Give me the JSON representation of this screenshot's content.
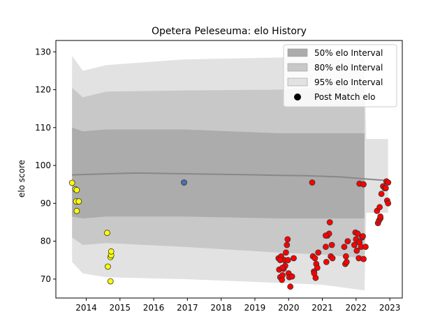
{
  "chart_data": {
    "type": "scatter",
    "title": "Opetera Peleseuma: elo History",
    "xlabel": "",
    "ylabel": "elo score",
    "xlim": [
      2013.1,
      2023.37
    ],
    "ylim": [
      65,
      133
    ],
    "x_ticks": [
      2014,
      2015,
      2016,
      2017,
      2018,
      2019,
      2020,
      2021,
      2022,
      2023
    ],
    "x_tick_labels": [
      "2014",
      "2015",
      "2016",
      "2017",
      "2018",
      "2019",
      "2020",
      "2021",
      "2022",
      "2023"
    ],
    "y_ticks": [
      70,
      80,
      90,
      100,
      110,
      120,
      130
    ],
    "y_tick_labels": [
      "70",
      "80",
      "90",
      "100",
      "110",
      "120",
      "130"
    ],
    "grid": false,
    "legend_position": "top-right",
    "legend": [
      {
        "label": "50% elo Interval",
        "kind": "band",
        "color": "#acacac"
      },
      {
        "label": "80% elo Interval",
        "kind": "band",
        "color": "#c8c8c8"
      },
      {
        "label": "95% elo Interval",
        "kind": "band",
        "color": "#e2e2e2"
      },
      {
        "label": "Post Match elo",
        "kind": "marker",
        "color": "#000000"
      }
    ],
    "mean_line": {
      "color": "#888888",
      "x": [
        2013.58,
        2014.6,
        2015.5,
        2016.9,
        2018.5,
        2019.7,
        2020.5,
        2021.5,
        2022.2,
        2022.95
      ],
      "y": [
        97.5,
        97.8,
        98.0,
        97.8,
        97.6,
        97.4,
        97.3,
        97.0,
        96.5,
        96.0
      ]
    },
    "intervals": [
      {
        "name": "95% elo Interval",
        "color": "#e2e2e2",
        "x": [
          2013.58,
          2013.9,
          2014.6,
          2016.9,
          2019.7,
          2021.0,
          2022.25,
          2022.3,
          2022.95
        ],
        "upper": [
          129,
          125,
          126.5,
          128,
          128.5,
          128.5,
          128.5,
          107,
          107
        ],
        "lower": [
          74.5,
          71.5,
          70.5,
          70.0,
          69.0,
          68.5,
          67.0,
          87.5,
          87.5
        ]
      },
      {
        "name": "80% elo Interval",
        "color": "#c8c8c8",
        "x": [
          2013.58,
          2013.9,
          2014.6,
          2016.9,
          2019.7,
          2021.0,
          2022.25
        ],
        "upper": [
          120.5,
          118,
          119.5,
          119.8,
          120,
          120.5,
          121
        ],
        "lower": [
          81,
          79,
          79.5,
          78.5,
          77,
          76.5,
          75.5
        ]
      },
      {
        "name": "50% elo Interval",
        "color": "#acacac",
        "x": [
          2013.58,
          2013.9,
          2014.6,
          2016.9,
          2019.7,
          2021.0,
          2022.25
        ],
        "upper": [
          110,
          109,
          109.5,
          109.5,
          108.5,
          108.5,
          108.5
        ],
        "lower": [
          86.5,
          86,
          86.5,
          86.5,
          86,
          86,
          86
        ]
      }
    ],
    "series": [
      {
        "name": "Post Match elo (2013-2014)",
        "color": "#ffff00",
        "x": [
          2013.58,
          2013.68,
          2013.72,
          2013.74,
          2013.7,
          2013.78,
          2013.72,
          2014.62,
          2014.64,
          2014.72,
          2014.74,
          2014.74,
          2014.72
        ],
        "y": [
          95.4,
          93.7,
          93.5,
          90.5,
          90.5,
          90.5,
          88.0,
          82.2,
          73.3,
          75.8,
          76.3,
          77.3,
          69.4
        ]
      },
      {
        "name": "Post Match elo (2016)",
        "color": "#4a6fb0",
        "x": [
          2016.9
        ],
        "y": [
          95.5
        ]
      },
      {
        "name": "Post Match elo (2019-2023)",
        "color": "#ff0000",
        "x": [
          2019.7,
          2019.72,
          2019.75,
          2019.8,
          2019.82,
          2019.85,
          2019.88,
          2019.9,
          2019.92,
          2019.95,
          2019.97,
          2019.98,
          2020.0,
          2020.02,
          2020.05,
          2020.1,
          2020.15,
          2019.78,
          2019.82,
          2019.75,
          2020.7,
          2020.72,
          2020.75,
          2020.8,
          2020.82,
          2020.85,
          2020.88,
          2020.78,
          2020.76,
          2021.1,
          2021.12,
          2021.15,
          2021.2,
          2021.22,
          2021.25,
          2021.28,
          2021.3,
          2021.1,
          2021.65,
          2021.68,
          2021.7,
          2021.75,
          2021.72,
          2021.95,
          2021.98,
          2022.0,
          2022.02,
          2022.05,
          2022.08,
          2022.1,
          2022.15,
          2022.18,
          2022.2,
          2022.22,
          2022.28,
          2022.1,
          2022.22,
          2022.62,
          2022.65,
          2022.68,
          2022.7,
          2022.72,
          2022.75,
          2022.8,
          2022.85,
          2022.9,
          2022.92,
          2022.95,
          2022.88,
          2022.95,
          2022.72
        ],
        "y": [
          75.5,
          72.5,
          70.5,
          69.8,
          71.0,
          72.7,
          75.0,
          73.5,
          77.0,
          79.0,
          80.5,
          75.0,
          71.5,
          70.5,
          68.0,
          70.7,
          75.5,
          76.0,
          73.0,
          75.0,
          95.5,
          76.0,
          72.0,
          70.3,
          74.0,
          73.0,
          77.0,
          75.5,
          71.5,
          78.5,
          74.5,
          81.5,
          82.0,
          85.0,
          76.0,
          79.0,
          75.5,
          81.5,
          78.5,
          74.0,
          76.0,
          80.0,
          74.5,
          79.0,
          82.3,
          80.5,
          77.5,
          82.0,
          75.5,
          79.7,
          78.5,
          81.0,
          81.3,
          75.3,
          78.5,
          95.2,
          95.0,
          88.0,
          84.8,
          85.5,
          89.0,
          86.0,
          92.5,
          94.5,
          94.0,
          95.8,
          90.7,
          90.0,
          94.0,
          95.5,
          86.5
        ]
      }
    ]
  }
}
